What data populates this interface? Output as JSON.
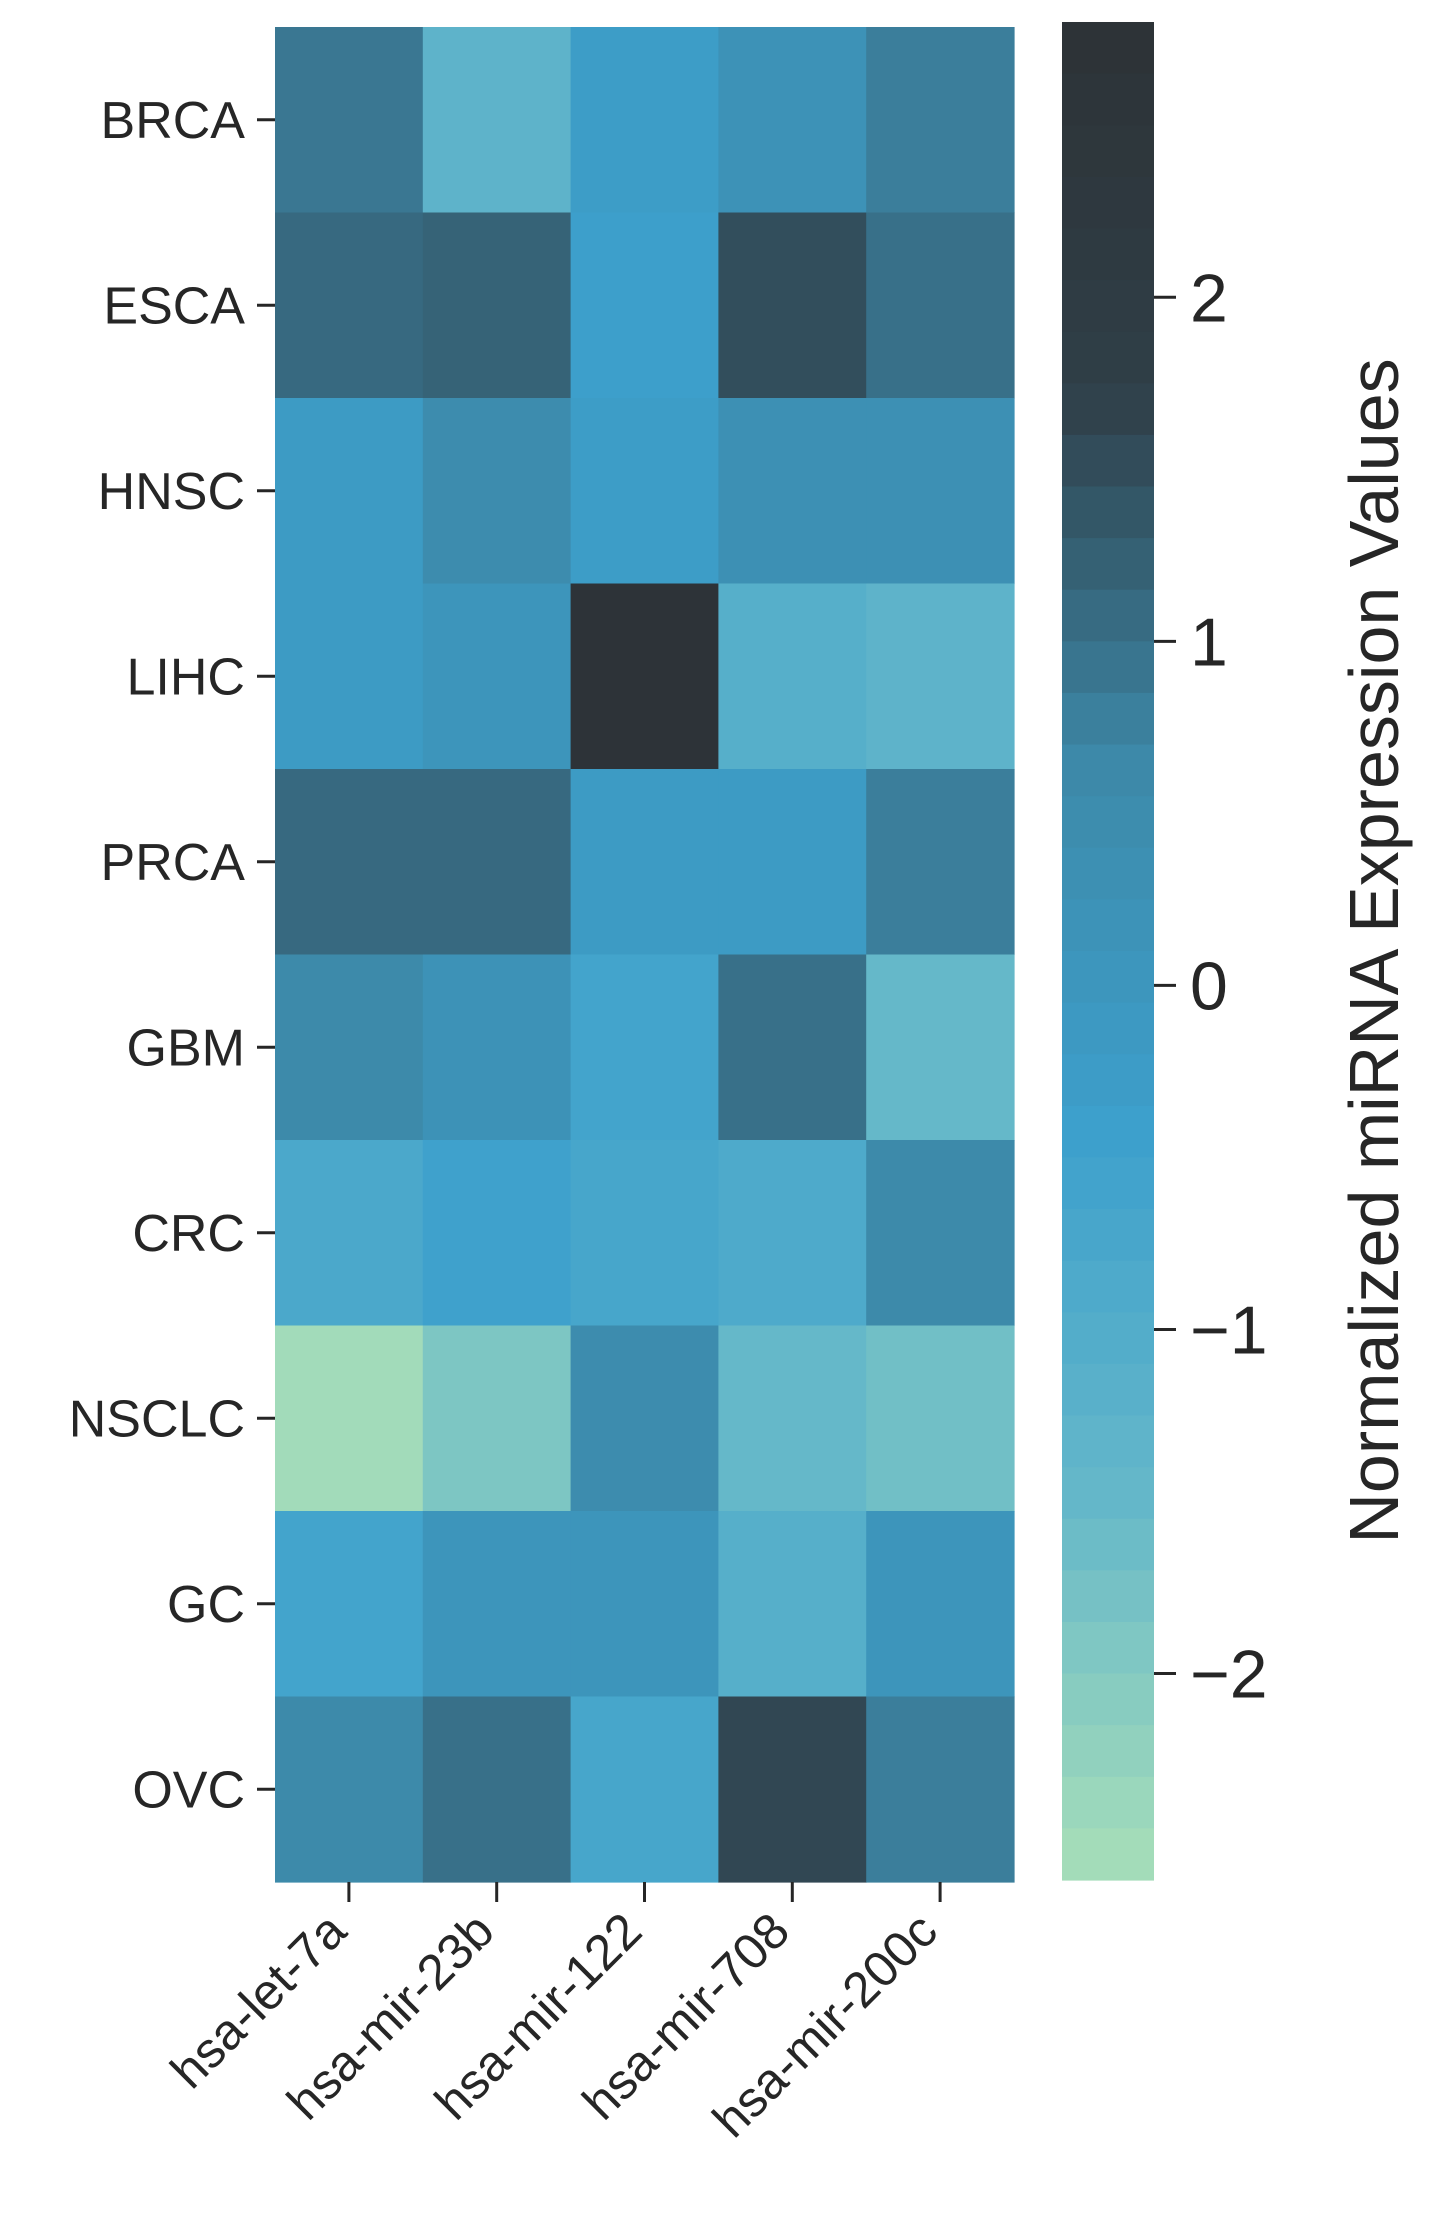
{
  "chart_data": {
    "type": "heatmap",
    "rows": [
      "BRCA",
      "ESCA",
      "HNSC",
      "LIHC",
      "PRCA",
      "GBM",
      "CRC",
      "NSCLC",
      "GC",
      "OVC"
    ],
    "columns": [
      "hsa-let-7a",
      "hsa-mir-23b",
      "hsa-mir-122",
      "hsa-mir-708",
      "hsa-mir-200c"
    ],
    "values": [
      [
        0.9,
        -1.3,
        -0.3,
        0.2,
        0.8
      ],
      [
        1.1,
        1.2,
        -0.4,
        1.5,
        1.0
      ],
      [
        -0.2,
        0.5,
        -0.3,
        0.3,
        0.3
      ],
      [
        -0.2,
        0.1,
        2.7,
        -1.1,
        -1.3
      ],
      [
        1.1,
        1.1,
        -0.2,
        -0.2,
        0.8
      ],
      [
        0.6,
        0.2,
        -0.6,
        1.0,
        -1.5
      ],
      [
        -0.8,
        -0.5,
        -0.7,
        -0.9,
        0.6
      ],
      [
        -2.5,
        -1.9,
        0.5,
        -1.5,
        -1.7
      ],
      [
        -0.6,
        0.1,
        0.1,
        -1.1,
        0.1
      ],
      [
        0.6,
        1.0,
        -0.7,
        1.6,
        0.8
      ]
    ],
    "colorbar": {
      "label": "Normalized miRNA Expression Values",
      "min": -2.6,
      "max": 2.8,
      "ticks": [
        2,
        1,
        0,
        -1,
        -2
      ],
      "tick_labels": [
        "2",
        "1",
        "0",
        "−1",
        "−2"
      ],
      "colors": [
        "#a8dfb8",
        "#66b8c9",
        "#3da0cc",
        "#3d89a9",
        "#2f3f48",
        "#2d3236"
      ]
    }
  }
}
